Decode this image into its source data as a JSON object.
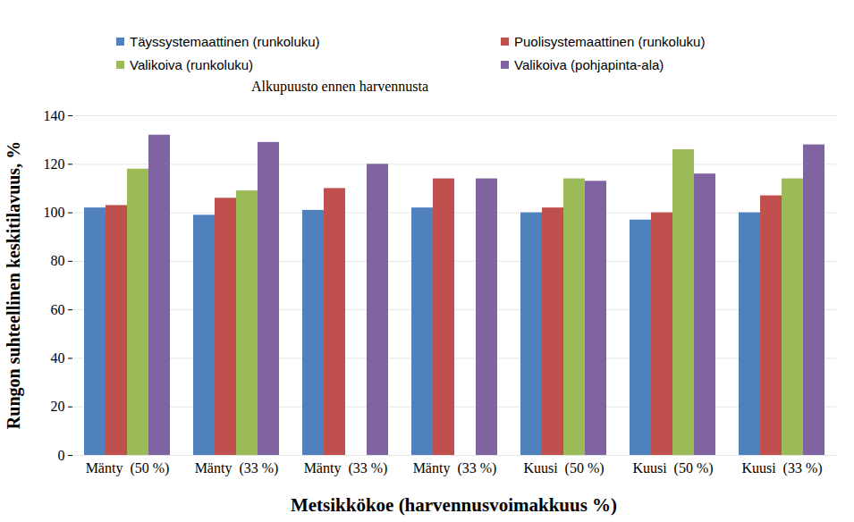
{
  "chart_data": {
    "type": "bar",
    "subtitle": "Alkupuusto ennen harvennusta",
    "xlabel": "Metsikkökoe (harvennusvoimakkuus %)",
    "ylabel": "Rungon suhteellinen keskitilavuus, %",
    "categories": [
      "Mänty  (50 %)",
      "Mänty  (33 %)",
      "Mänty  (33 %)",
      "Mänty  (33 %)",
      "Kuusi  (50 %)",
      "Kuusi  (50 %)",
      "Kuusi  (33 %)"
    ],
    "series": [
      {
        "name": "Täyssystemaattinen (runkoluku)",
        "color": "#4f81bd",
        "values": [
          102,
          99,
          101,
          102,
          100,
          97,
          100
        ]
      },
      {
        "name": "Puolisystemaattinen (runkoluku)",
        "color": "#c0504d",
        "values": [
          103,
          106,
          110,
          114,
          102,
          100,
          107
        ]
      },
      {
        "name": "Valikoiva (runkoluku)",
        "color": "#9bbb59",
        "values": [
          118,
          109,
          null,
          null,
          114,
          126,
          114
        ]
      },
      {
        "name": "Valikoiva (pohjapinta-ala)",
        "color": "#8064a2",
        "values": [
          132,
          129,
          120,
          114,
          113,
          116,
          128
        ]
      }
    ],
    "ylim": [
      0,
      140
    ],
    "yticks": [
      0,
      20,
      40,
      60,
      80,
      100,
      120,
      140
    ],
    "grid": true,
    "legend": "top"
  }
}
